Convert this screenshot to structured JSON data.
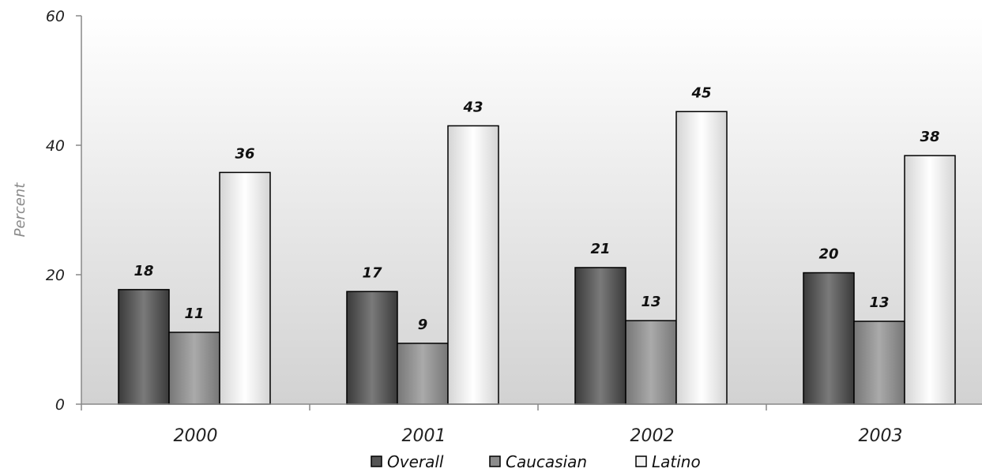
{
  "chart_data": {
    "type": "bar",
    "ylabel": "Percent",
    "ylim": [
      0,
      60
    ],
    "yticks": [
      0,
      20,
      40,
      60
    ],
    "categories": [
      "2000",
      "2001",
      "2002",
      "2003"
    ],
    "series": [
      {
        "name": "Overall",
        "values": [
          17.7,
          17.4,
          21.1,
          20.3
        ],
        "labels": [
          "18",
          "17",
          "21",
          "20"
        ],
        "color": "#555555"
      },
      {
        "name": "Caucasian",
        "values": [
          11.1,
          9.4,
          12.9,
          12.8
        ],
        "labels": [
          "11",
          "9",
          "13",
          "13"
        ],
        "color": "#8c8c8c"
      },
      {
        "name": "Latino",
        "values": [
          35.8,
          43.0,
          45.2,
          38.4
        ],
        "labels": [
          "36",
          "43",
          "45",
          "38"
        ],
        "color": "#f2f2f2"
      }
    ],
    "grid": false,
    "legend_position": "bottom"
  }
}
